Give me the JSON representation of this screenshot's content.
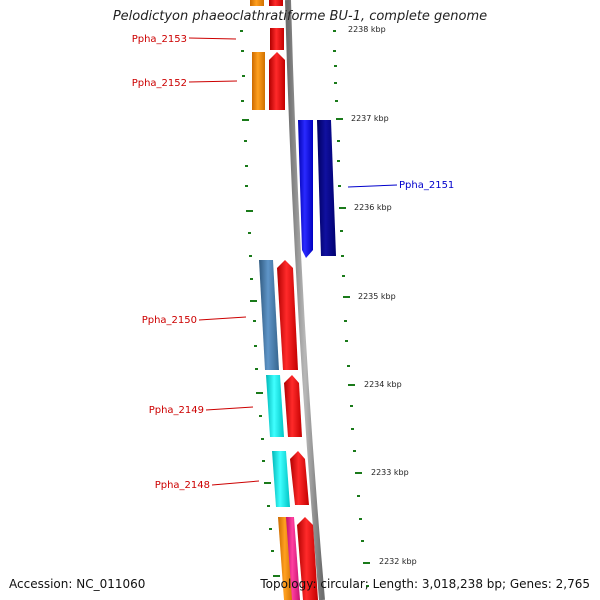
{
  "title": "Pelodictyon phaeoclathratiforme BU-1, complete genome",
  "accession": "Accession: NC_011060",
  "summary": "Topology: circular; Length: 3,018,238 bp; Genes: 2,765",
  "colors": {
    "backbone": "#8a8a8a",
    "tick": "#1a7a1a",
    "gene_red": "#ff0000",
    "gene_orange": "#ff8c00",
    "gene_blue": "#0000ff",
    "gene_navy": "#00008b",
    "gene_steel": "#4682b4",
    "gene_cyan": "#00ffff",
    "gene_magenta": "#ff1493",
    "label_red": "#cc0000",
    "label_blue": "#0000cc"
  },
  "kbp_labels": [
    "2238 kbp",
    "2237 kbp",
    "2236 kbp",
    "2235 kbp",
    "2234 kbp",
    "2233 kbp",
    "2232 kbp"
  ],
  "gene_labels": [
    {
      "text": "Ppha_2153",
      "color": "red"
    },
    {
      "text": "Ppha_2152",
      "color": "red"
    },
    {
      "text": "Ppha_2151",
      "color": "blue"
    },
    {
      "text": "Ppha_2150",
      "color": "red"
    },
    {
      "text": "Ppha_2149",
      "color": "red"
    },
    {
      "text": "Ppha_2148",
      "color": "red"
    }
  ]
}
